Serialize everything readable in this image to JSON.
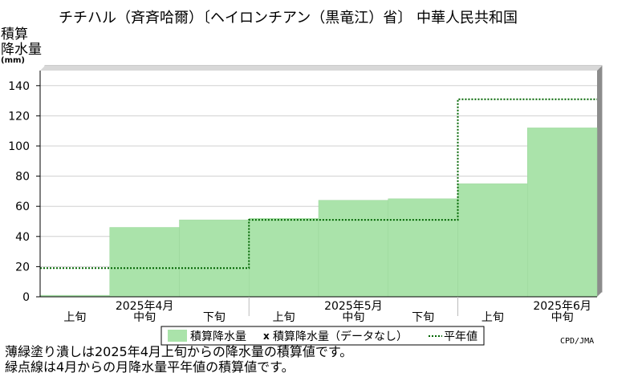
{
  "chart_data": {
    "type": "area",
    "title": "チチハル（斉斉哈爾）〔ヘイロンチアン（黒竜江）省〕 中華人民共和国",
    "ylabel_lines": [
      "積算",
      "降水量",
      "(mm)"
    ],
    "ylim": [
      0,
      150
    ],
    "yticks": [
      0,
      20,
      40,
      60,
      80,
      100,
      120,
      140
    ],
    "grid": true,
    "periods": [
      "上旬",
      "中旬",
      "下旬",
      "上旬",
      "中旬",
      "下旬",
      "上旬",
      "中旬"
    ],
    "months": [
      {
        "label": "2025年4月",
        "periods": 3
      },
      {
        "label": "2025年5月",
        "periods": 3
      },
      {
        "label": "2025年6月",
        "periods": 2
      }
    ],
    "series": [
      {
        "name": "積算降水量",
        "kind": "bar",
        "color": "#aae3aa",
        "values": [
          1,
          46,
          51,
          52,
          64,
          65,
          75,
          112
        ]
      },
      {
        "name": "平年値",
        "kind": "step",
        "color": "#006400",
        "monthly_values": [
          19,
          51,
          131
        ]
      }
    ],
    "legend": {
      "position": "bottom",
      "items": [
        {
          "label": "積算降水量",
          "marker": "swatch",
          "color": "#aae3aa"
        },
        {
          "label": "積算降水量（データなし）",
          "marker": "x",
          "color": "#000000"
        },
        {
          "label": "平年値",
          "marker": "dotted-line",
          "color": "#006400"
        }
      ]
    },
    "x_marker": "x"
  },
  "notes": [
    "薄緑塗り潰しは2025年4月上旬からの降水量の積算値です。",
    "緑点線は4月からの月降水量平年値の積算値です。"
  ],
  "credit": "CPD/JMA"
}
